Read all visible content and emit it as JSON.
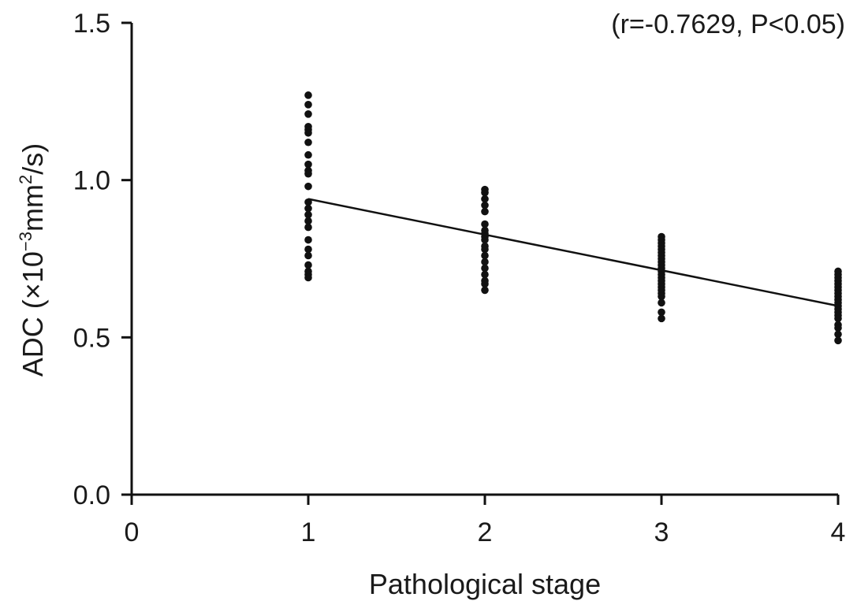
{
  "chart_data": {
    "type": "scatter",
    "title": "",
    "xlabel": "Pathological stage",
    "ylabel": "ADC (×10",
    "ylabel_exp": "−3",
    "ylabel_unit": "mm",
    "ylabel_unit_exp": "2",
    "ylabel_end": "/s)",
    "annotation": "(r=-0.7629, P<0.05)",
    "xlim": [
      0,
      4
    ],
    "ylim": [
      0.0,
      1.5
    ],
    "xticks": [
      0,
      1,
      2,
      3,
      4
    ],
    "xtick_labels": [
      "0",
      "1",
      "2",
      "3",
      "4"
    ],
    "yticks": [
      0.0,
      0.5,
      1.0,
      1.5
    ],
    "ytick_labels": [
      "0.0",
      "0.5",
      "1.0",
      "1.5"
    ],
    "grid": false,
    "legend": "none",
    "series": [
      {
        "x": [
          1,
          1,
          1,
          1,
          1,
          1,
          1,
          1,
          1,
          1,
          1,
          1,
          1,
          1,
          1,
          1,
          1,
          1,
          1,
          1,
          1,
          1,
          1,
          1,
          2,
          2,
          2,
          2,
          2,
          2,
          2,
          2,
          2,
          2,
          2,
          2,
          2,
          2,
          2,
          2,
          2,
          2,
          2,
          3,
          3,
          3,
          3,
          3,
          3,
          3,
          3,
          3,
          3,
          3,
          3,
          3,
          3,
          3,
          3,
          3,
          3,
          3,
          3,
          3,
          3,
          3,
          4,
          4,
          4,
          4,
          4,
          4,
          4,
          4,
          4,
          4,
          4,
          4,
          4,
          4,
          4,
          4,
          4,
          4,
          4,
          4
        ],
        "y": [
          1.27,
          1.24,
          1.21,
          1.17,
          1.16,
          1.15,
          1.12,
          1.08,
          1.05,
          1.03,
          1.02,
          0.98,
          0.93,
          0.91,
          0.89,
          0.87,
          0.85,
          0.81,
          0.78,
          0.76,
          0.73,
          0.71,
          0.7,
          0.69,
          0.97,
          0.96,
          0.94,
          0.92,
          0.9,
          0.86,
          0.84,
          0.83,
          0.82,
          0.81,
          0.79,
          0.78,
          0.76,
          0.74,
          0.72,
          0.7,
          0.68,
          0.67,
          0.65,
          0.82,
          0.81,
          0.8,
          0.79,
          0.78,
          0.77,
          0.76,
          0.75,
          0.74,
          0.73,
          0.72,
          0.71,
          0.7,
          0.69,
          0.68,
          0.67,
          0.66,
          0.65,
          0.64,
          0.63,
          0.61,
          0.58,
          0.56,
          0.71,
          0.7,
          0.69,
          0.68,
          0.67,
          0.66,
          0.65,
          0.64,
          0.63,
          0.62,
          0.61,
          0.6,
          0.59,
          0.58,
          0.57,
          0.56,
          0.54,
          0.53,
          0.51,
          0.49
        ]
      }
    ],
    "trendline": {
      "x": [
        1,
        4
      ],
      "y": [
        0.94,
        0.6
      ]
    }
  }
}
